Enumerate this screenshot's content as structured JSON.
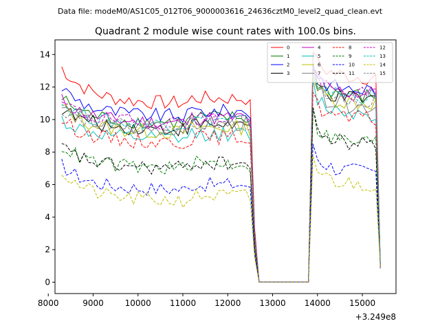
{
  "figure": {
    "suptitle": "Data file: modeM0/AS1C05_012T06_9000003616_24636cztM0_level2_quad_clean.evt",
    "offset_label": "+3.249e8"
  },
  "chart_data": {
    "type": "line",
    "title": "Quadrant 2 module wise count rates with 100.0s bins.",
    "xlabel": "",
    "ylabel": "",
    "x_offset": 324900000,
    "xlim": [
      8150,
      15750
    ],
    "ylim": [
      -0.7,
      14.9
    ],
    "xticks": [
      8000,
      9000,
      10000,
      11000,
      12000,
      13000,
      14000,
      15000
    ],
    "yticks": [
      0,
      2,
      4,
      6,
      8,
      10,
      12,
      14
    ],
    "time_start": 8300,
    "time_step": 100,
    "n_points": 72,
    "gap_start_index": 44,
    "gap_end_index": 55,
    "legend_position": "top-right",
    "series": [
      {
        "name": "0",
        "color": "#ff0000",
        "dash": "solid",
        "level_a": 11.0,
        "level_b": 12.6,
        "start_boost": 2.2
      },
      {
        "name": "1",
        "color": "#008000",
        "dash": "solid",
        "level_a": 9.8,
        "level_b": 11.4,
        "start_boost": 1.5
      },
      {
        "name": "2",
        "color": "#0000ff",
        "dash": "solid",
        "level_a": 10.2,
        "level_b": 11.8,
        "start_boost": 1.8
      },
      {
        "name": "3",
        "color": "#000000",
        "dash": "solid",
        "level_a": 9.4,
        "level_b": 11.2,
        "start_boost": 1.3
      },
      {
        "name": "4",
        "color": "#bf00bf",
        "dash": "solid",
        "level_a": 9.8,
        "level_b": 11.6,
        "start_boost": 1.4
      },
      {
        "name": "5",
        "color": "#00bfbf",
        "dash": "solid",
        "level_a": 8.8,
        "level_b": 10.4,
        "start_boost": 1.2
      },
      {
        "name": "6",
        "color": "#bfbf00",
        "dash": "solid",
        "level_a": 9.2,
        "level_b": 11.0,
        "start_boost": 1.6
      },
      {
        "name": "7",
        "color": "#808080",
        "dash": "solid",
        "level_a": 9.4,
        "level_b": 10.8,
        "start_boost": 1.4
      },
      {
        "name": "8",
        "color": "#ff0000",
        "dash": "dashed",
        "level_a": 8.6,
        "level_b": 10.0,
        "start_boost": 1.4
      },
      {
        "name": "9",
        "color": "#008000",
        "dash": "dashed",
        "level_a": 7.0,
        "level_b": 8.6,
        "start_boost": 1.4
      },
      {
        "name": "10",
        "color": "#0000ff",
        "dash": "dashed",
        "level_a": 5.7,
        "level_b": 6.8,
        "start_boost": 1.5
      },
      {
        "name": "11",
        "color": "#000000",
        "dash": "dashed",
        "level_a": 7.0,
        "level_b": 8.5,
        "start_boost": 1.3
      },
      {
        "name": "12",
        "color": "#bf00bf",
        "dash": "dashed",
        "level_a": 9.8,
        "level_b": 11.5,
        "start_boost": 1.2
      },
      {
        "name": "13",
        "color": "#00bfbf",
        "dash": "dashed",
        "level_a": 9.7,
        "level_b": 11.4,
        "start_boost": 1.3
      },
      {
        "name": "14",
        "color": "#bfbf00",
        "dash": "dashed",
        "level_a": 5.0,
        "level_b": 6.0,
        "start_boost": 1.8
      },
      {
        "name": "15",
        "color": "#808080",
        "dash": "dashed",
        "level_a": 9.5,
        "level_b": 11.2,
        "start_boost": 1.2
      }
    ]
  }
}
